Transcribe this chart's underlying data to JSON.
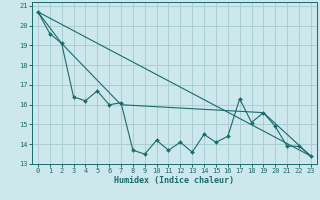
{
  "title": "",
  "xlabel": "Humidex (Indice chaleur)",
  "ylabel": "",
  "bg_color": "#cce8ec",
  "grid_color": "#aacdd4",
  "line_color": "#1a6b6b",
  "xlim": [
    -0.5,
    23.5
  ],
  "ylim": [
    13,
    21.2
  ],
  "yticks": [
    13,
    14,
    15,
    16,
    17,
    18,
    19,
    20,
    21
  ],
  "xticks": [
    0,
    1,
    2,
    3,
    4,
    5,
    6,
    7,
    8,
    9,
    10,
    11,
    12,
    13,
    14,
    15,
    16,
    17,
    18,
    19,
    20,
    21,
    22,
    23
  ],
  "series1_x": [
    0,
    1,
    2,
    3,
    4,
    5,
    6,
    7,
    8,
    9,
    10,
    11,
    12,
    13,
    14,
    15,
    16,
    17,
    18,
    19,
    20,
    21,
    22,
    23
  ],
  "series1_y": [
    20.7,
    19.6,
    19.1,
    16.4,
    16.2,
    16.7,
    16.0,
    16.1,
    13.7,
    13.5,
    14.2,
    13.7,
    14.1,
    13.6,
    14.5,
    14.1,
    14.4,
    16.3,
    15.1,
    15.6,
    14.9,
    13.9,
    13.9,
    13.4
  ],
  "line1_x": [
    0,
    23
  ],
  "line1_y": [
    20.7,
    13.4
  ],
  "line2_x": [
    0,
    2,
    7,
    19,
    23
  ],
  "line2_y": [
    20.7,
    19.1,
    16.0,
    15.6,
    13.4
  ]
}
